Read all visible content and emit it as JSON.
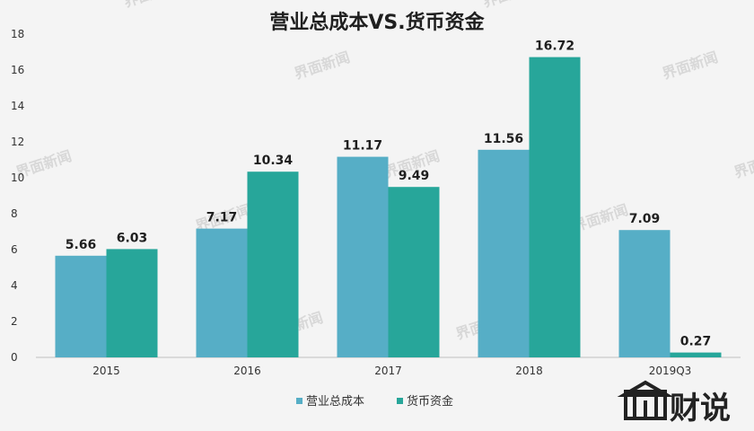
{
  "chart_data": {
    "type": "bar",
    "title": "营业总成本VS.货币资金",
    "categories": [
      "2015",
      "2016",
      "2017",
      "2018",
      "2019Q3"
    ],
    "series": [
      {
        "name": "营业总成本",
        "color": "#56aec6",
        "values": [
          5.66,
          7.17,
          11.17,
          11.56,
          7.09
        ]
      },
      {
        "name": "货币资金",
        "color": "#27a69a",
        "values": [
          6.03,
          10.34,
          9.49,
          16.72,
          0.27
        ]
      }
    ],
    "ylim": [
      0,
      18
    ],
    "yticks": [
      0,
      2,
      4,
      6,
      8,
      10,
      12,
      14,
      16,
      18
    ],
    "grid": false,
    "legend": "bottom"
  },
  "watermark": {
    "text": "界面新闻",
    "brand": "财说"
  }
}
